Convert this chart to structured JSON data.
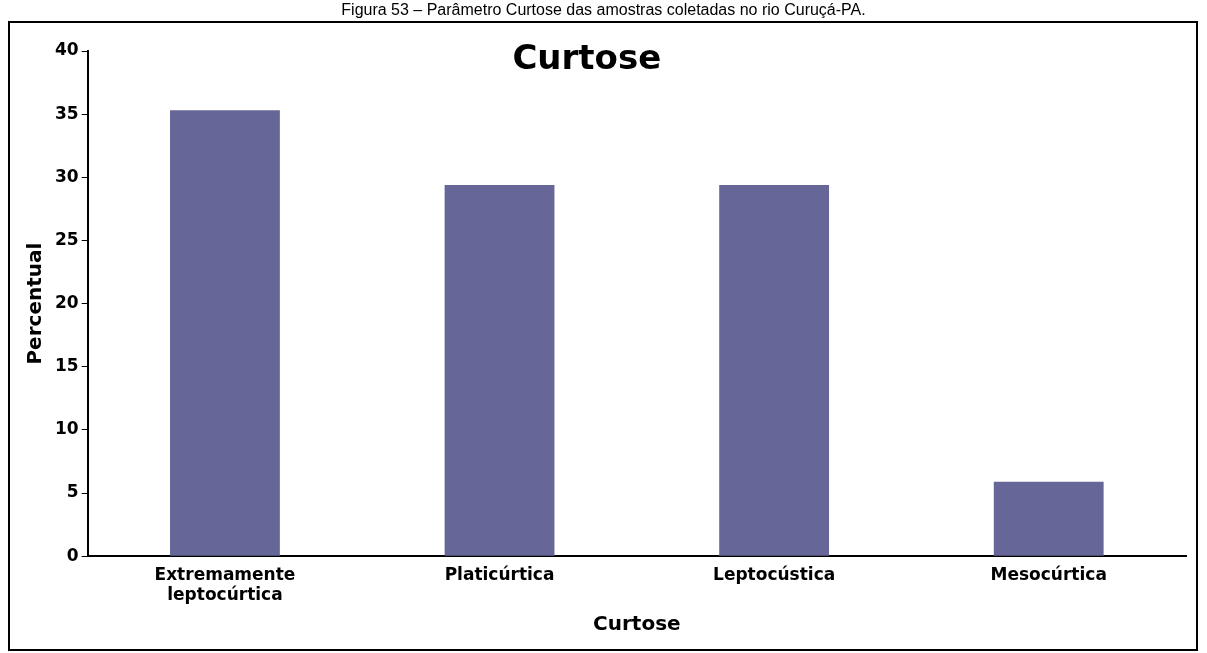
{
  "chart_data": {
    "type": "bar",
    "title": "Curtose",
    "xlabel": "Curtose",
    "ylabel": "Percentual",
    "annotations": [
      "Figura 53 – Parâmetro Curtose das amostras coletadas no rio Curuçá-PA."
    ],
    "categories": [
      "Extremamente leptocúrtica",
      "Platicúrtica",
      "Leptocústica",
      "Mesocúrtica"
    ],
    "values": [
      35.3,
      29.4,
      29.4,
      5.9
    ],
    "color": "#666699",
    "ylim": [
      0,
      40
    ],
    "yticks": [
      0,
      5,
      10,
      15,
      20,
      25,
      30,
      35,
      40
    ],
    "grid": false,
    "legend": false
  }
}
